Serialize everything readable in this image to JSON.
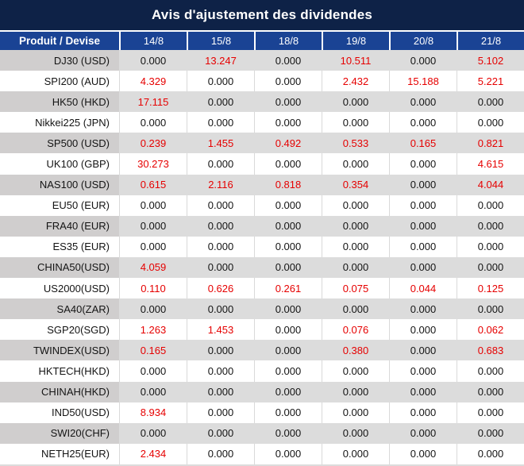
{
  "title": "Avis d'ajustement des dividendes",
  "table": {
    "product_header": "Produit / Devise",
    "dates": [
      "14/8",
      "15/8",
      "18/8",
      "19/8",
      "20/8",
      "21/8"
    ],
    "rows": [
      {
        "product": "DJ30 (USD)",
        "values": [
          "0.000",
          "13.247",
          "0.000",
          "10.511",
          "0.000",
          "5.102"
        ]
      },
      {
        "product": "SPI200 (AUD)",
        "values": [
          "4.329",
          "0.000",
          "0.000",
          "2.432",
          "15.188",
          "5.221"
        ]
      },
      {
        "product": "HK50 (HKD)",
        "values": [
          "17.115",
          "0.000",
          "0.000",
          "0.000",
          "0.000",
          "0.000"
        ]
      },
      {
        "product": "Nikkei225 (JPN)",
        "values": [
          "0.000",
          "0.000",
          "0.000",
          "0.000",
          "0.000",
          "0.000"
        ]
      },
      {
        "product": "SP500 (USD)",
        "values": [
          "0.239",
          "1.455",
          "0.492",
          "0.533",
          "0.165",
          "0.821"
        ]
      },
      {
        "product": "UK100 (GBP)",
        "values": [
          "30.273",
          "0.000",
          "0.000",
          "0.000",
          "0.000",
          "4.615"
        ]
      },
      {
        "product": "NAS100 (USD)",
        "values": [
          "0.615",
          "2.116",
          "0.818",
          "0.354",
          "0.000",
          "4.044"
        ]
      },
      {
        "product": "EU50 (EUR)",
        "values": [
          "0.000",
          "0.000",
          "0.000",
          "0.000",
          "0.000",
          "0.000"
        ]
      },
      {
        "product": "FRA40 (EUR)",
        "values": [
          "0.000",
          "0.000",
          "0.000",
          "0.000",
          "0.000",
          "0.000"
        ]
      },
      {
        "product": "ES35 (EUR)",
        "values": [
          "0.000",
          "0.000",
          "0.000",
          "0.000",
          "0.000",
          "0.000"
        ]
      },
      {
        "product": "CHINA50(USD)",
        "values": [
          "4.059",
          "0.000",
          "0.000",
          "0.000",
          "0.000",
          "0.000"
        ]
      },
      {
        "product": "US2000(USD)",
        "values": [
          "0.110",
          "0.626",
          "0.261",
          "0.075",
          "0.044",
          "0.125"
        ]
      },
      {
        "product": "SA40(ZAR)",
        "values": [
          "0.000",
          "0.000",
          "0.000",
          "0.000",
          "0.000",
          "0.000"
        ]
      },
      {
        "product": "SGP20(SGD)",
        "values": [
          "1.263",
          "1.453",
          "0.000",
          "0.076",
          "0.000",
          "0.062"
        ]
      },
      {
        "product": "TWINDEX(USD)",
        "values": [
          "0.165",
          "0.000",
          "0.000",
          "0.380",
          "0.000",
          "0.683"
        ]
      },
      {
        "product": "HKTECH(HKD)",
        "values": [
          "0.000",
          "0.000",
          "0.000",
          "0.000",
          "0.000",
          "0.000"
        ]
      },
      {
        "product": "CHINAH(HKD)",
        "values": [
          "0.000",
          "0.000",
          "0.000",
          "0.000",
          "0.000",
          "0.000"
        ]
      },
      {
        "product": "IND50(USD)",
        "values": [
          "8.934",
          "0.000",
          "0.000",
          "0.000",
          "0.000",
          "0.000"
        ]
      },
      {
        "product": "SWI20(CHF)",
        "values": [
          "0.000",
          "0.000",
          "0.000",
          "0.000",
          "0.000",
          "0.000"
        ]
      },
      {
        "product": "NETH25(EUR)",
        "values": [
          "2.434",
          "0.000",
          "0.000",
          "0.000",
          "0.000",
          "0.000"
        ]
      }
    ]
  },
  "colors": {
    "title_bg": "#0e2247",
    "header_bg": "#1a4394",
    "row_gray": "#dcdcdc",
    "row_gray_first_col": "#d0cece",
    "gridline": "#d9d9d9",
    "value_red": "#e60000",
    "text_dark": "#141414"
  }
}
